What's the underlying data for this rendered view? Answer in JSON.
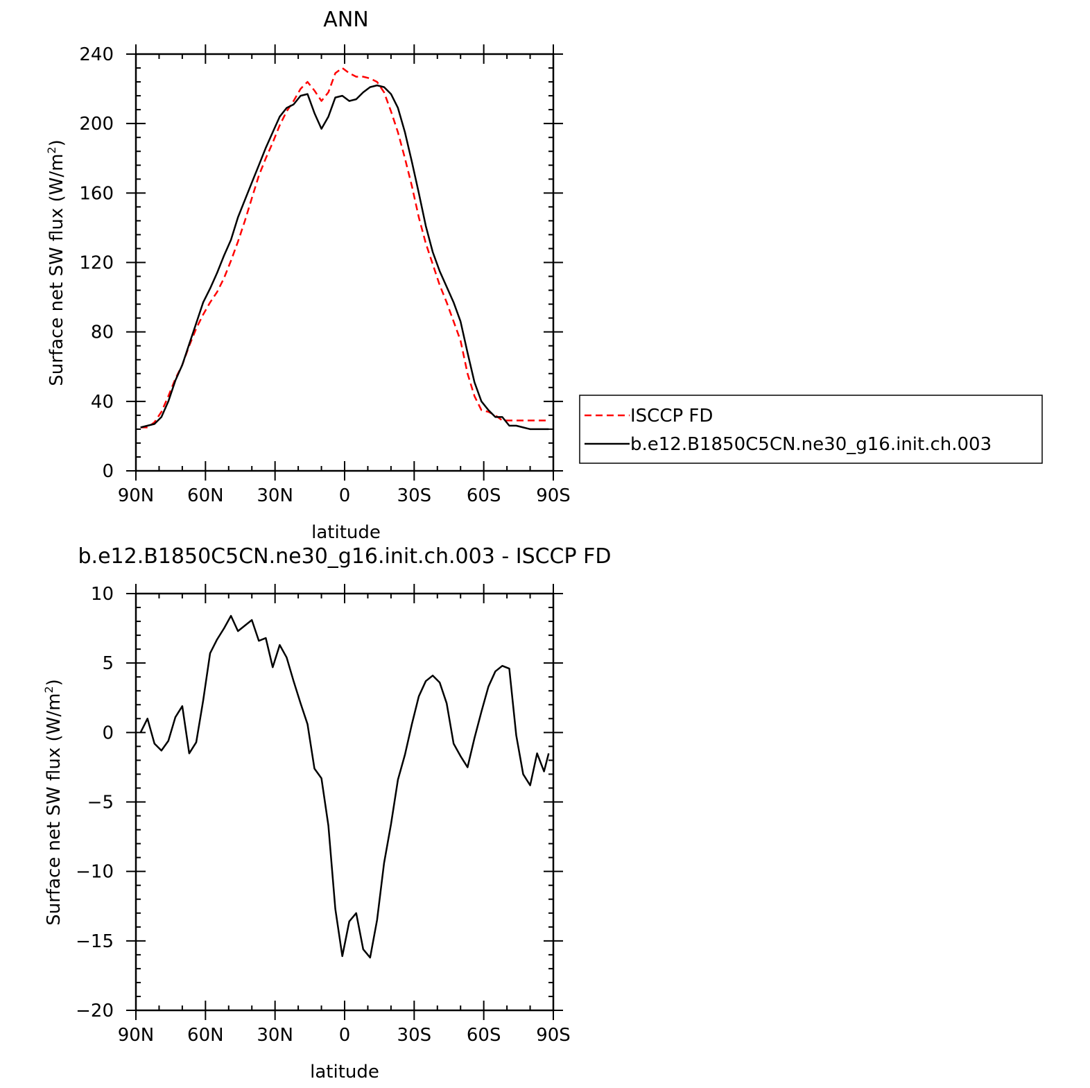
{
  "chart_data": [
    {
      "type": "line",
      "title": "ANN",
      "xlabel": "latitude",
      "ylabel": "Surface net SW flux (W/m²)",
      "ylabel_main": "Surface net SW flux (W/m",
      "ylabel_sup": "2",
      "ylabel_close": ")",
      "xlim": [
        90,
        -90
      ],
      "ylim": [
        0,
        240
      ],
      "x_ticks": [
        90,
        60,
        30,
        0,
        -30,
        -60,
        -90
      ],
      "x_tick_labels": [
        "90N",
        "60N",
        "30N",
        "0",
        "30S",
        "60S",
        "90S"
      ],
      "y_ticks": [
        0,
        40,
        80,
        120,
        160,
        200,
        240
      ],
      "y_tick_labels": [
        "0",
        "40",
        "80",
        "120",
        "160",
        "200",
        "240"
      ],
      "legend_position": "right",
      "series": [
        {
          "name": "ISCCP FD",
          "color": "#ff0000",
          "dash": "dashed",
          "x": [
            88,
            85,
            82,
            79,
            76,
            73,
            70,
            67,
            64,
            61,
            58,
            55,
            52,
            49,
            46,
            43,
            40,
            37,
            34,
            31,
            28,
            25,
            22,
            19,
            16,
            13,
            10,
            7,
            4,
            1,
            -2,
            -5,
            -8,
            -11,
            -14,
            -17,
            -20,
            -23,
            -26,
            -29,
            -32,
            -35,
            -38,
            -41,
            -44,
            -47,
            -50,
            -53,
            -56,
            -59,
            -62,
            -65,
            -68,
            -71,
            -74,
            -77,
            -80,
            -83,
            -86,
            -88
          ],
          "y": [
            25,
            25,
            28,
            34,
            43,
            53,
            61,
            72,
            82,
            90,
            97,
            103,
            111,
            121,
            132,
            144,
            157,
            170,
            180,
            189,
            199,
            207,
            213,
            220,
            224,
            219,
            213,
            218,
            229,
            232,
            229,
            227,
            227,
            226,
            224,
            218,
            207,
            195,
            180,
            164,
            146,
            131,
            119,
            107,
            97,
            86,
            75,
            56,
            43,
            35,
            34,
            32,
            29,
            29,
            29,
            29,
            29,
            29,
            29,
            29
          ]
        },
        {
          "name": "b.e12.B1850C5CN.ne30_g16.init.ch.003",
          "color": "#000000",
          "dash": "solid",
          "x": [
            88,
            85,
            82,
            79,
            76,
            73,
            70,
            67,
            64,
            61,
            58,
            55,
            52,
            49,
            46,
            43,
            40,
            37,
            34,
            31,
            28,
            25,
            22,
            19,
            16,
            13,
            10,
            7,
            4,
            1,
            -2,
            -5,
            -8,
            -11,
            -14,
            -17,
            -20,
            -23,
            -26,
            -29,
            -32,
            -35,
            -38,
            -41,
            -44,
            -47,
            -50,
            -53,
            -56,
            -59,
            -62,
            -65,
            -68,
            -71,
            -74,
            -77,
            -80,
            -83,
            -86,
            -88
          ],
          "y": [
            25,
            26,
            27,
            31,
            40,
            52,
            61,
            73,
            85,
            97,
            105,
            114,
            124,
            133,
            146,
            156,
            166,
            176,
            186,
            195,
            204,
            209,
            211,
            216,
            217,
            206,
            197,
            204,
            215,
            216,
            213,
            214,
            218,
            221,
            222,
            221,
            217,
            209,
            195,
            178,
            160,
            141,
            126,
            115,
            106,
            97,
            86,
            68,
            51,
            40,
            35,
            31,
            31,
            26,
            26,
            25,
            24,
            24,
            24,
            24
          ]
        }
      ]
    },
    {
      "type": "line",
      "title": "b.e12.B1850C5CN.ne30_g16.init.ch.003 - ISCCP FD",
      "xlabel": "latitude",
      "ylabel": "Surface net SW flux (W/m²)",
      "ylabel_main": "Surface net SW flux (W/m",
      "ylabel_sup": "2",
      "ylabel_close": ")",
      "xlim": [
        90,
        -90
      ],
      "ylim": [
        -20,
        10
      ],
      "x_ticks": [
        90,
        60,
        30,
        0,
        -30,
        -60,
        -90
      ],
      "x_tick_labels": [
        "90N",
        "60N",
        "30N",
        "0",
        "30S",
        "60S",
        "90S"
      ],
      "y_ticks": [
        -20,
        -15,
        -10,
        -5,
        0,
        5,
        10
      ],
      "y_tick_labels": [
        "−20",
        "−15",
        "−10",
        "−5",
        "0",
        "5",
        "10"
      ],
      "series": [
        {
          "color": "#000000",
          "dash": "solid",
          "x": [
            88,
            85,
            82,
            79,
            76,
            73,
            70,
            67,
            64,
            61,
            58,
            55,
            52,
            49,
            46,
            43,
            40,
            37,
            34,
            31,
            28,
            25,
            22,
            19,
            16,
            13,
            10,
            7,
            4,
            1,
            -2,
            -5,
            -8,
            -11,
            -14,
            -17,
            -20,
            -23,
            -26,
            -29,
            -32,
            -35,
            -38,
            -41,
            -44,
            -47,
            -50,
            -53,
            -56,
            -59,
            -62,
            -65,
            -68,
            -71,
            -74,
            -77,
            -80,
            -83,
            -86,
            -88
          ],
          "y": [
            0,
            1,
            -0.8,
            -1.3,
            -0.6,
            1.1,
            1.9,
            -1.5,
            -0.7,
            2.3,
            5.7,
            6.7,
            7.5,
            8.4,
            7.3,
            7.7,
            8.1,
            6.6,
            6.8,
            4.7,
            6.3,
            5.4,
            3.7,
            2.1,
            0.6,
            -2.6,
            -3.3,
            -6.7,
            -12.7,
            -16.1,
            -13.6,
            -13,
            -15.6,
            -16.2,
            -13.5,
            -9.4,
            -6.6,
            -3.4,
            -1.6,
            0.6,
            2.6,
            3.7,
            4.1,
            3.6,
            2.1,
            -0.8,
            -1.7,
            -2.5,
            -0.4,
            1.5,
            3.3,
            4.4,
            4.8,
            4.6,
            -0.2,
            -3,
            -3.8,
            -1.5,
            -2.8,
            -1.5
          ]
        }
      ]
    }
  ]
}
